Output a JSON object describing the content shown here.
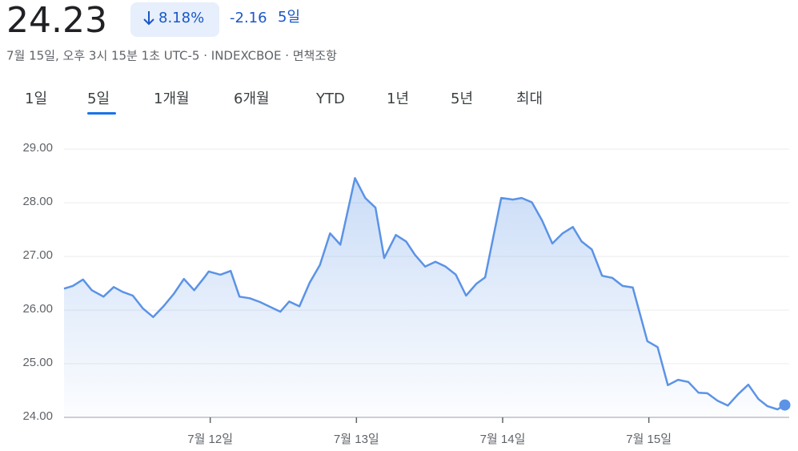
{
  "header": {
    "price": "24.23",
    "change_percent": "8.18%",
    "change": "-2.16",
    "period": "5일",
    "subtitle": "7월 15일, 오후 3시 15분 1초 UTC-5 · INDEXCBOE · 면책조항"
  },
  "tabs": {
    "items": [
      "1일",
      "5일",
      "1개월",
      "6개월",
      "YTD",
      "1년",
      "5년",
      "최대"
    ],
    "selected": 1
  },
  "chart_data": {
    "type": "area",
    "color": "#5b93e6",
    "grid": true,
    "xlim": [
      11.0,
      15.96
    ],
    "xticks": [
      {
        "value": 12,
        "label": "7월 12일"
      },
      {
        "value": 13,
        "label": "7월 13일"
      },
      {
        "value": 14,
        "label": "7월 14일"
      },
      {
        "value": 15,
        "label": "7월 15일"
      }
    ],
    "ylim": [
      24,
      29.6
    ],
    "yticks": [
      {
        "value": 24,
        "label": "24.00"
      },
      {
        "value": 25,
        "label": "25.00"
      },
      {
        "value": 26,
        "label": "26.00"
      },
      {
        "value": 27,
        "label": "27.00"
      },
      {
        "value": 28,
        "label": "28.00"
      },
      {
        "value": 29,
        "label": "29.00"
      }
    ],
    "x": [
      11.0,
      11.06,
      11.13,
      11.19,
      11.27,
      11.34,
      11.4,
      11.47,
      11.54,
      11.61,
      11.68,
      11.75,
      11.82,
      11.89,
      11.96,
      11.99,
      12.07,
      12.14,
      12.2,
      12.27,
      12.34,
      12.41,
      12.48,
      12.54,
      12.61,
      12.68,
      12.75,
      12.82,
      12.89,
      12.99,
      13.06,
      13.13,
      13.19,
      13.27,
      13.34,
      13.4,
      13.47,
      13.54,
      13.61,
      13.68,
      13.75,
      13.82,
      13.88,
      13.99,
      14.07,
      14.13,
      14.2,
      14.27,
      14.34,
      14.41,
      14.48,
      14.54,
      14.61,
      14.68,
      14.75,
      14.82,
      14.89,
      14.99,
      15.06,
      15.13,
      15.2,
      15.27,
      15.34,
      15.4,
      15.47,
      15.54,
      15.61,
      15.68,
      15.75,
      15.81,
      15.88,
      15.93
    ],
    "values": [
      26.4,
      26.45,
      26.57,
      26.37,
      26.25,
      26.43,
      26.34,
      26.27,
      26.03,
      25.87,
      26.07,
      26.3,
      26.58,
      26.37,
      26.61,
      26.72,
      26.66,
      26.73,
      26.25,
      26.22,
      26.15,
      26.06,
      25.97,
      26.16,
      26.07,
      26.51,
      26.84,
      27.43,
      27.22,
      28.46,
      28.09,
      27.91,
      26.97,
      27.4,
      27.28,
      27.03,
      26.81,
      26.9,
      26.81,
      26.66,
      26.27,
      26.49,
      26.61,
      28.09,
      28.06,
      28.09,
      28.01,
      27.67,
      27.24,
      27.43,
      27.55,
      27.28,
      27.13,
      26.64,
      26.6,
      26.45,
      26.42,
      25.42,
      25.31,
      24.6,
      24.7,
      24.66,
      24.46,
      24.45,
      24.31,
      24.22,
      24.43,
      24.61,
      24.34,
      24.21,
      24.15,
      24.23
    ]
  }
}
